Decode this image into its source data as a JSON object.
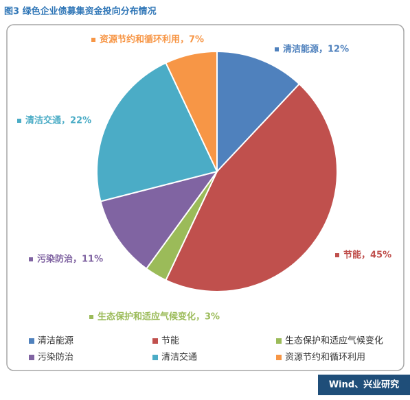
{
  "chart_data": {
    "type": "pie",
    "title": "图3 绿色企业债募集资金投向分布情况",
    "categories": [
      "清洁能源",
      "节能",
      "生态保护和适应气候变化",
      "污染防治",
      "清洁交通",
      "资源节约和循环利用"
    ],
    "values": [
      12,
      45,
      3,
      11,
      22,
      7
    ],
    "value_labels": [
      "清洁能源，12%",
      "节能，45%",
      "生态保护和适应气候变化，3%",
      "污染防治，11%",
      "清洁交通，22%",
      "资源节约和循环利用，7%"
    ],
    "colors": [
      "#4f81bd",
      "#c0504d",
      "#9bbb59",
      "#8064a2",
      "#4bacc6",
      "#f79646"
    ],
    "source": "Wind、兴业研究"
  }
}
